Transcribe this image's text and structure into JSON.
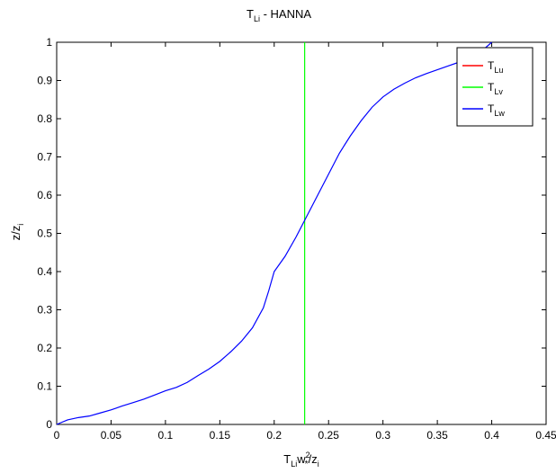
{
  "chart_data": {
    "type": "line",
    "title": {
      "main": "T",
      "sub": "Li",
      "rest": " - HANNA"
    },
    "xlabel": {
      "t": "T",
      "li": "Li",
      "w": "w",
      "sup": "2",
      "star": "*",
      "slash": "/z",
      "i": "i"
    },
    "ylabel": {
      "z": "z/z",
      "i": "i"
    },
    "xlim": [
      0,
      0.45
    ],
    "ylim": [
      0,
      1
    ],
    "xticks": [
      0,
      0.05,
      0.1,
      0.15,
      0.2,
      0.25,
      0.3,
      0.35,
      0.4,
      0.45
    ],
    "xtick_labels": [
      "0",
      "0.05",
      "0.1",
      "0.15",
      "0.2",
      "0.25",
      "0.3",
      "0.35",
      "0.4",
      "0.45"
    ],
    "yticks": [
      0,
      0.1,
      0.2,
      0.3,
      0.4,
      0.5,
      0.6,
      0.7,
      0.8,
      0.9,
      1
    ],
    "ytick_labels": [
      "0",
      "0.1",
      "0.2",
      "0.3",
      "0.4",
      "0.5",
      "0.6",
      "0.7",
      "0.8",
      "0.9",
      "1"
    ],
    "grid": false,
    "legend_position": "top-right",
    "series": [
      {
        "name": "T",
        "sub": "Lu",
        "color": "#ff0000",
        "x": [],
        "y": []
      },
      {
        "name": "T",
        "sub": "Lv",
        "color": "#00ff00",
        "x": [
          0.228,
          0.228
        ],
        "y": [
          0,
          1
        ]
      },
      {
        "name": "T",
        "sub": "Lw",
        "color": "#0000ff",
        "x": [
          0,
          0.01,
          0.02,
          0.03,
          0.04,
          0.05,
          0.06,
          0.07,
          0.08,
          0.09,
          0.1,
          0.11,
          0.12,
          0.13,
          0.14,
          0.15,
          0.16,
          0.17,
          0.18,
          0.19,
          0.195,
          0.2,
          0.21,
          0.22,
          0.23,
          0.24,
          0.25,
          0.26,
          0.27,
          0.28,
          0.29,
          0.3,
          0.31,
          0.32,
          0.33,
          0.34,
          0.35,
          0.36,
          0.37,
          0.38,
          0.39,
          0.4
        ],
        "y": [
          0,
          0.012,
          0.018,
          0.022,
          0.03,
          0.038,
          0.048,
          0.057,
          0.066,
          0.077,
          0.088,
          0.097,
          0.11,
          0.128,
          0.145,
          0.165,
          0.19,
          0.218,
          0.253,
          0.305,
          0.35,
          0.4,
          0.44,
          0.49,
          0.545,
          0.6,
          0.655,
          0.71,
          0.755,
          0.795,
          0.83,
          0.857,
          0.877,
          0.893,
          0.907,
          0.918,
          0.928,
          0.938,
          0.948,
          0.96,
          0.975,
          1.0
        ]
      }
    ]
  }
}
